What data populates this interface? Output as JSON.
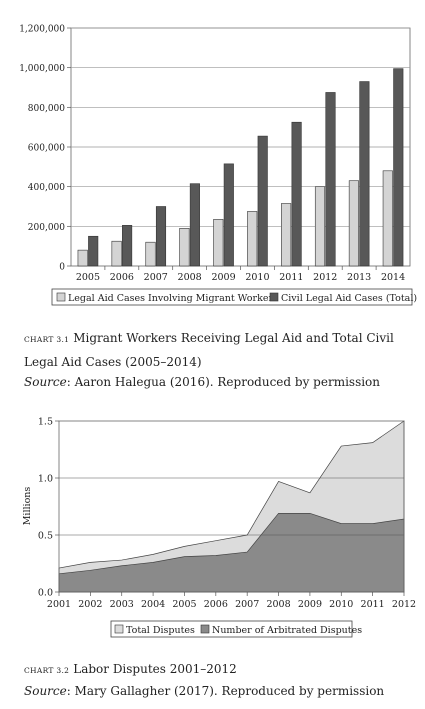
{
  "chart_data": [
    {
      "type": "bar",
      "categories": [
        "2005",
        "2006",
        "2007",
        "2008",
        "2009",
        "2010",
        "2011",
        "2012",
        "2013",
        "2014"
      ],
      "series": [
        {
          "name": "Legal Aid Cases Involving Migrant Workers",
          "color": "#d4d4d4",
          "values": [
            80000,
            125000,
            120000,
            190000,
            235000,
            275000,
            315000,
            400000,
            430000,
            480000
          ]
        },
        {
          "name": "Civil Legal Aid Cases (Total)",
          "color": "#585858",
          "values": [
            150000,
            205000,
            300000,
            415000,
            515000,
            655000,
            725000,
            875000,
            930000,
            995000
          ]
        }
      ],
      "yticks": [
        "0",
        "200,000",
        "400,000",
        "600,000",
        "800,000",
        "1,000,000",
        "1,200,000"
      ],
      "ylim": [
        0,
        1200000
      ],
      "grid": true,
      "legend": "bottom"
    },
    {
      "type": "area",
      "x": [
        2001,
        2002,
        2003,
        2004,
        2005,
        2006,
        2007,
        2008,
        2009,
        2010,
        2011,
        2012
      ],
      "xticks": [
        "2001",
        "2002",
        "2003",
        "2004",
        "2005",
        "2006",
        "2007",
        "2008",
        "2009",
        "2010",
        "2011",
        "2012"
      ],
      "series": [
        {
          "name": "Total Disputes",
          "color": "#dcdcdc",
          "values": [
            0.21,
            0.26,
            0.28,
            0.33,
            0.4,
            0.45,
            0.5,
            0.97,
            0.87,
            1.28,
            1.31,
            1.5
          ]
        },
        {
          "name": "Number of Arbitrated Disputes",
          "color": "#8a8a8a",
          "values": [
            0.16,
            0.19,
            0.23,
            0.26,
            0.31,
            0.32,
            0.35,
            0.69,
            0.69,
            0.6,
            0.6,
            0.64
          ]
        }
      ],
      "ylabel": "Millions",
      "yticks": [
        "0.0",
        "0.5",
        "1.0",
        "1.5"
      ],
      "ylim": [
        0,
        1.5
      ],
      "grid": true,
      "legend": "bottom"
    }
  ],
  "captions": [
    {
      "label": "CHART 3.1",
      "title": "Migrant Workers Receiving Legal Aid and Total Civil Legal Aid Cases (2005–2014)",
      "source_label": "Source",
      "source_text": ": Aaron Halegua (2016). Reproduced by permission"
    },
    {
      "label": "CHART 3.2",
      "title": "Labor Disputes 2001–2012",
      "source_label": "Source",
      "source_text": ": Mary Gallagher (2017). Reproduced by permission"
    }
  ]
}
